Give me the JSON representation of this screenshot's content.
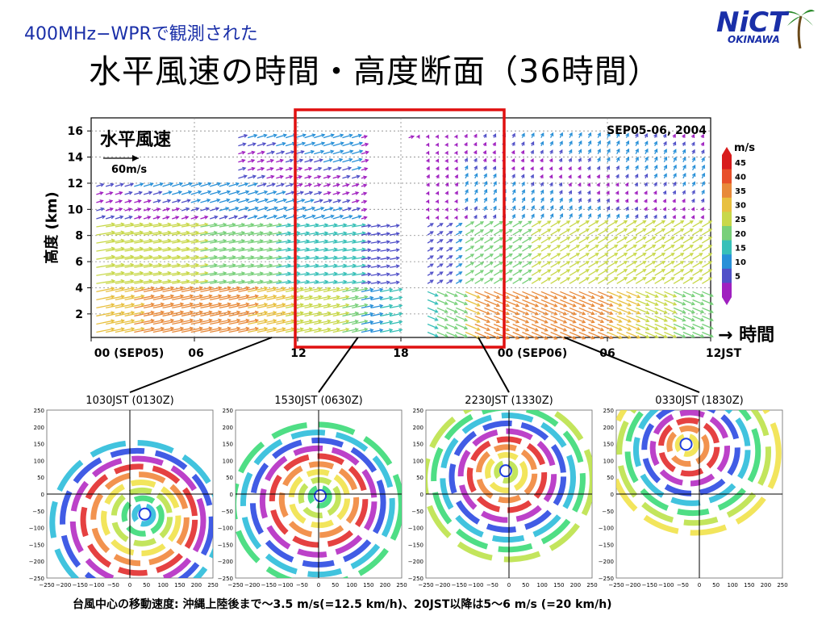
{
  "header": {
    "subtitle": "400MHz−WPRで観測された",
    "title": "水平風速の時間・高度断面（36時間）"
  },
  "logo": {
    "text": "NiCT",
    "sub": "OKINAWA"
  },
  "chart_data": [
    {
      "type": "quiver",
      "title": "水平風速",
      "date_label": "SEP05-06, 2004",
      "ylabel": "高度 (km)",
      "xlabel": "→ 時間",
      "y_ticks": [
        "2",
        "4",
        "6",
        "8",
        "10",
        "12",
        "14",
        "16"
      ],
      "x_ticks": [
        "00 (SEP05)",
        "06",
        "12",
        "18",
        "00 (SEP06)",
        "06",
        "12JST"
      ],
      "reference_vector": "60m/s",
      "colorbar": {
        "unit": "m/s",
        "ticks": [
          "45",
          "40",
          "35",
          "30",
          "25",
          "20",
          "15",
          "10",
          "5"
        ]
      },
      "highlight": {
        "from_hour": 12,
        "to_hour": 24
      }
    },
    {
      "type": "heatmap",
      "panels": [
        {
          "title": "1030JST (0130Z)",
          "eye": [
            45,
            -60
          ]
        },
        {
          "title": "1530JST (0630Z)",
          "eye": [
            5,
            -5
          ]
        },
        {
          "title": "2230JST (1330Z)",
          "eye": [
            -10,
            70
          ]
        },
        {
          "title": "0330JST (1830Z)",
          "eye": [
            -40,
            150
          ]
        }
      ],
      "x_ticks": [
        "−250",
        "−200",
        "−150",
        "−100",
        "−50",
        "0",
        "50",
        "100",
        "150",
        "200",
        "250"
      ],
      "y_ticks": [
        "250",
        "200",
        "150",
        "100",
        "50",
        "0",
        "−50",
        "−100",
        "−150",
        "−200",
        "−250"
      ]
    }
  ],
  "footnote": "台風中心の移動速度: 沖縄上陸後まで〜3.5 m/s(=12.5 km/h)、20JST以降は5〜6 m/s (=20 km/h)",
  "colors": {
    "highlight": "#e01010",
    "title_blue": "#1a2fa8"
  }
}
